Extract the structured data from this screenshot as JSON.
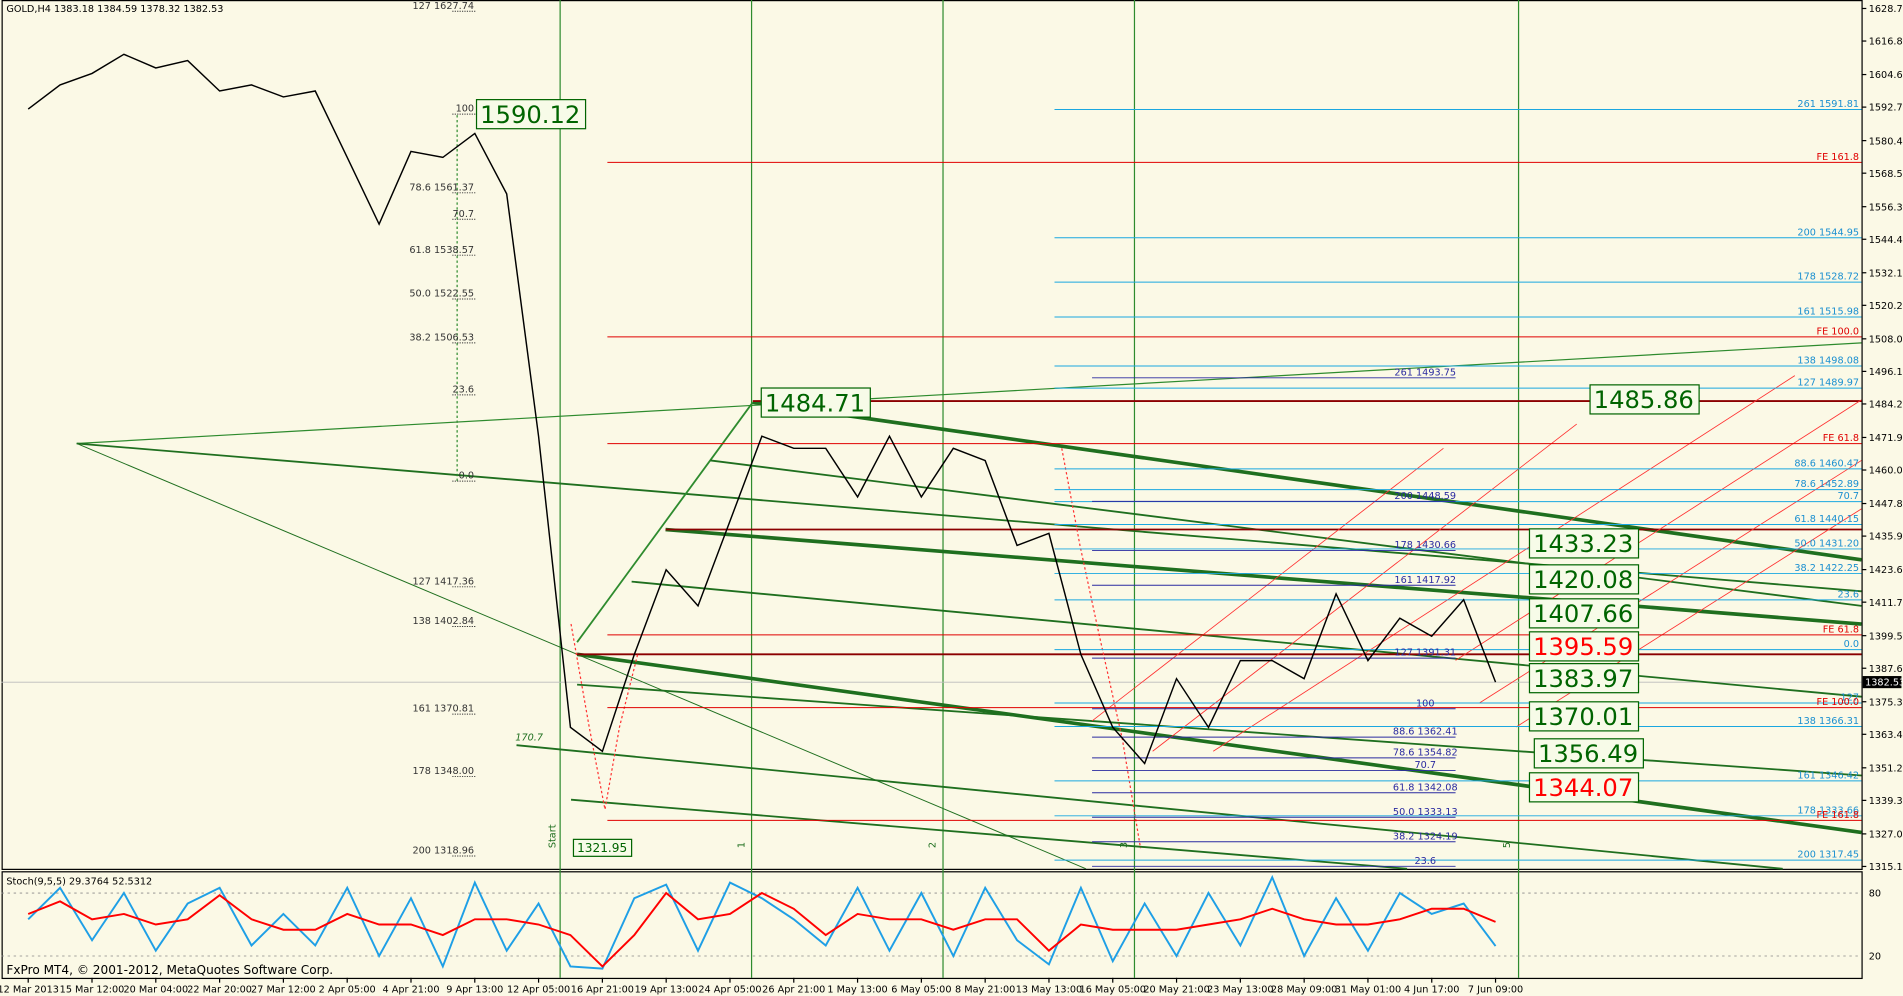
{
  "chart_data": [
    {
      "type": "line",
      "title": "GOLD,H4  1383.18 1384.59 1378.32 1382.53",
      "categories": [
        "12 Mar 2013",
        null,
        "15 Mar 12:00",
        null,
        "20 Mar 04:00",
        null,
        "22 Mar 20:00",
        null,
        "27 Mar 12:00",
        null,
        "2 Apr 05:00",
        null,
        "4 Apr 21:00",
        null,
        "9 Apr 13:00",
        null,
        "12 Apr 05:00",
        null,
        "16 Apr 21:00",
        null,
        "19 Apr 13:00",
        null,
        "24 Apr 05:00",
        null,
        "26 Apr 21:00",
        null,
        "1 May 13:00",
        null,
        "6 May 05:00",
        null,
        "8 May 21:00",
        null,
        "13 May 13:00",
        null,
        "16 May 05:00",
        null,
        "20 May 21:00",
        null,
        "23 May 13:00",
        null,
        "28 May 09:00",
        null,
        "31 May 01:00",
        null,
        "4 Jun 17:00",
        null,
        "7 Jun 09:00"
      ],
      "series": [
        {
          "color": "#000000",
          "values": [
            1592,
            1600.8,
            1605,
            1612,
            1607,
            1609.7,
            1598.6,
            1600.8,
            1596.4,
            1598.6,
            1574.3,
            1549.9,
            1576.5,
            1574.3,
            1583.1,
            1561,
            1472.4,
            1366,
            1357.2,
            1392.6,
            1423.6,
            1410.4,
            1441.4,
            1472.4,
            1468,
            1468,
            1450.2,
            1472.4,
            1450.2,
            1468,
            1463.5,
            1432.5,
            1436.9,
            1392.6,
            1366,
            1352.8,
            1383.8,
            1366,
            1390.4,
            1390.4,
            1383.8,
            1414.8,
            1390.4,
            1405.9,
            1399.3,
            1412.6,
            1382.5
          ]
        }
      ],
      "ylim": [
        1314.3,
        1631.85
      ],
      "yticks": [
        1628.75,
        1616.85,
        {
          "value": 1604.6,
          "label": "1604.60"
        },
        {
          "value": 1592.7,
          "label": "1592.70"
        },
        1580.45,
        1568.55,
        {
          "value": 1556.3,
          "label": "1556.30"
        },
        {
          "value": 1544.4,
          "label": "1544.40"
        },
        1532.15,
        1520.25,
        {
          "value": 1508,
          "label": "1508.00"
        },
        {
          "value": 1496.1,
          "label": "1496.10"
        },
        {
          "value": 1484.2,
          "label": "1484.20"
        },
        1471.95,
        1460.05,
        {
          "value": 1447.8,
          "label": "1447.80"
        },
        {
          "value": 1435.9,
          "label": "1435.90"
        },
        1423.65,
        1411.75,
        {
          "value": 1399.5,
          "label": "1399.50"
        },
        {
          "value": 1387.6,
          "label": "1387.60"
        },
        1375.35,
        1363.45,
        {
          "value": 1351.2,
          "label": "1351.20"
        },
        {
          "value": 1339.3,
          "label": "1339.30"
        },
        1327.05,
        1315.15
      ],
      "last_price": 1382.53,
      "left_levels": [
        {
          "label": "127 1627.74",
          "price": 1627.74
        },
        {
          "label": "100",
          "price": 1590.12
        },
        {
          "label": "78.6 1561.37",
          "price": 1561.37
        },
        {
          "label": "70.7",
          "price": 1551.7
        },
        {
          "label": "61.8 1538.57",
          "price": 1538.57
        },
        {
          "label": "50.0 1522.55",
          "price": 1522.55
        },
        {
          "label": "38.2 1506.53",
          "price": 1506.53
        },
        {
          "label": "23.6",
          "price": 1487.5
        },
        {
          "label": "0.0",
          "price": 1456
        },
        {
          "label": "127 1417.36",
          "price": 1417.36
        },
        {
          "label": "138 1402.84",
          "price": 1402.84
        },
        {
          "label": "161 1370.81",
          "price": 1370.81
        },
        {
          "label": "178 1348.00",
          "price": 1348
        },
        {
          "label": "200 1318.96",
          "price": 1318.96
        }
      ],
      "right_levels": [
        {
          "label": "261 1591.81",
          "price": 1591.81,
          "color": "#1aa7e0"
        },
        {
          "label": "FE 161.8",
          "price": 1572.5,
          "color": "#e00000"
        },
        {
          "label": "200 1544.95",
          "price": 1544.95,
          "color": "#1aa7e0"
        },
        {
          "label": "178 1528.72",
          "price": 1528.72,
          "color": "#1aa7e0"
        },
        {
          "label": "161 1515.98",
          "price": 1515.98,
          "color": "#1aa7e0"
        },
        {
          "label": "FE 100.0",
          "price": 1508.7,
          "color": "#e00000"
        },
        {
          "label": "138 1498.08",
          "price": 1498.08,
          "color": "#1aa7e0"
        },
        {
          "label": "127 1489.97",
          "price": 1489.97,
          "color": "#1aa7e0"
        },
        {
          "label": "FE 61.8",
          "price": 1469.7,
          "color": "#e00000"
        },
        {
          "label": "88.6 1460.47",
          "price": 1460.47,
          "color": "#1aa7e0"
        },
        {
          "label": "78.6 1452.89",
          "price": 1452.89,
          "color": "#1aa7e0"
        },
        {
          "label": "70.7",
          "price": 1448.5,
          "color": "#1aa7e0"
        },
        {
          "label": "61.8 1440.15",
          "price": 1440.15,
          "color": "#1aa7e0"
        },
        {
          "label": "50.0 1431.20",
          "price": 1431.2,
          "color": "#1aa7e0"
        },
        {
          "label": "38.2 1422.25",
          "price": 1422.25,
          "color": "#1aa7e0"
        },
        {
          "label": "23.6",
          "price": 1412.6,
          "color": "#1aa7e0"
        },
        {
          "label": "FE 61.8",
          "price": 1399.8,
          "color": "#e00000"
        },
        {
          "label": "0.0",
          "price": 1394.4,
          "color": "#1aa7e0"
        },
        {
          "label": "127",
          "price": 1374.9,
          "color": "#1aa7e0"
        },
        {
          "label": "FE 100.0",
          "price": 1373.2,
          "color": "#e00000"
        },
        {
          "label": "138 1366.31",
          "price": 1366.31,
          "color": "#1aa7e0"
        },
        {
          "label": "161 1346.42",
          "price": 1346.42,
          "color": "#1aa7e0"
        },
        {
          "label": "178 1333.66",
          "price": 1333.66,
          "color": "#1aa7e0"
        },
        {
          "label": "FE 161.8",
          "price": 1332,
          "color": "#e00000"
        },
        {
          "label": "200 1317.45",
          "price": 1317.45,
          "color": "#1aa7e0"
        }
      ],
      "mid_levels": [
        {
          "label": "261 1493.75",
          "price": 1493.75
        },
        {
          "label": "200 1448.59",
          "price": 1448.59
        },
        {
          "label": "178 1430.66",
          "price": 1430.66
        },
        {
          "label": "161 1417.92",
          "price": 1417.92
        },
        {
          "label": "127 1391.31",
          "price": 1391.31
        },
        {
          "label": "100",
          "price": 1372.8
        },
        {
          "label": "88.6 1362.41",
          "price": 1362.41
        },
        {
          "label": "78.6 1354.82",
          "price": 1354.82
        },
        {
          "label": "70.7",
          "price": 1350.2
        },
        {
          "label": "61.8 1342.08",
          "price": 1342.08
        },
        {
          "label": "50.0 1333.13",
          "price": 1333.13
        },
        {
          "label": "38.2 1324.19",
          "price": 1324.19
        },
        {
          "label": "23.6",
          "price": 1315.2
        }
      ],
      "boxes": [
        {
          "label": "1590.12",
          "price": 1590.12,
          "color": "#006400"
        },
        {
          "label": "1484.71",
          "price": 1484.71,
          "color": "#006400"
        },
        {
          "label": "1485.86",
          "price": 1485.86,
          "color": "#006400"
        },
        {
          "label": "1433.23",
          "price": 1433.23,
          "color": "#006400"
        },
        {
          "label": "1420.08",
          "price": 1420.08,
          "color": "#006400"
        },
        {
          "label": "1407.66",
          "price": 1407.66,
          "color": "#006400"
        },
        {
          "label": "1395.59",
          "price": 1395.59,
          "color": "#ff0000"
        },
        {
          "label": "1383.97",
          "price": 1383.97,
          "color": "#006400"
        },
        {
          "label": "1370.01",
          "price": 1370.01,
          "color": "#006400"
        },
        {
          "label": "1356.49",
          "price": 1356.49,
          "color": "#006400"
        },
        {
          "label": "1344.07",
          "price": 1344.07,
          "color": "#ff0000"
        },
        {
          "label": "1321.95",
          "price": 1321.95,
          "color": "#006400"
        }
      ],
      "markers": [
        "Start",
        "1",
        "2",
        "3",
        "5",
        "170.7"
      ]
    },
    {
      "type": "line",
      "title": "Stoch(9,5,5) 29.3764 52.5312",
      "ylim": [
        0,
        100
      ],
      "yticks": [
        80,
        20
      ],
      "series": [
        {
          "color": "#1e9fe6",
          "values": [
            55,
            85,
            35,
            80,
            25,
            70,
            85,
            30,
            60,
            30,
            85,
            20,
            75,
            10,
            90,
            25,
            70,
            10,
            8,
            75,
            88,
            25,
            90,
            75,
            55,
            30,
            85,
            25,
            80,
            20,
            85,
            35,
            12,
            85,
            15,
            70,
            20,
            80,
            30,
            95,
            20,
            75,
            25,
            80,
            60,
            70,
            29.4
          ]
        },
        {
          "color": "#ff0000",
          "values": [
            60,
            72,
            55,
            60,
            50,
            55,
            78,
            55,
            45,
            45,
            60,
            50,
            50,
            40,
            55,
            55,
            50,
            40,
            10,
            40,
            80,
            55,
            60,
            80,
            65,
            40,
            60,
            55,
            55,
            45,
            55,
            55,
            25,
            50,
            45,
            45,
            45,
            50,
            55,
            65,
            55,
            50,
            50,
            55,
            65,
            65,
            52.5
          ]
        }
      ]
    }
  ],
  "footer": "FxPro MT4, © 2001-2012, MetaQuotes Software Corp."
}
